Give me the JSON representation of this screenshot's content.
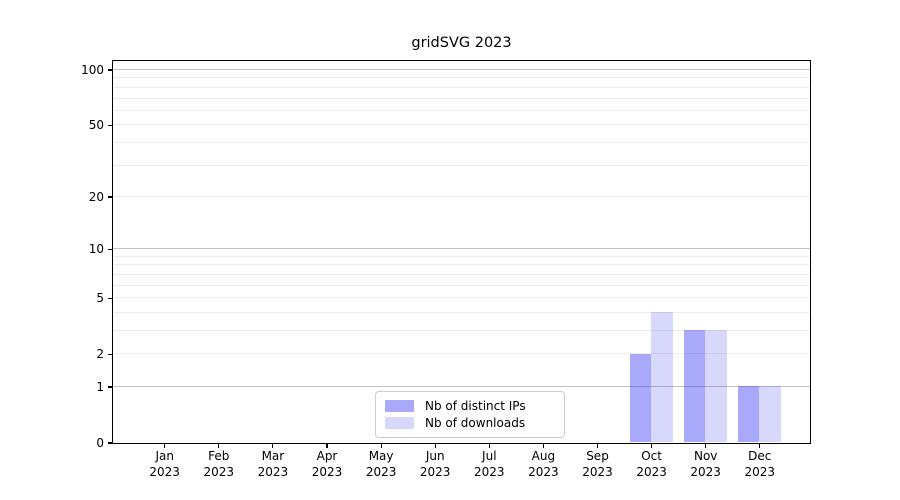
{
  "title": "gridSVG 2023",
  "chart_data": {
    "type": "bar",
    "title": "gridSVG 2023",
    "x": [
      "Jan",
      "Feb",
      "Mar",
      "Apr",
      "May",
      "Jun",
      "Jul",
      "Aug",
      "Sep",
      "Oct",
      "Nov",
      "Dec"
    ],
    "x_year": "2023",
    "series": [
      {
        "name": "Nb of distinct IPs",
        "color": "rgba(40,40,245,0.4)",
        "color_hex": "#a9a9f7",
        "values": [
          0,
          0,
          0,
          0,
          0,
          0,
          0,
          0,
          0,
          2,
          3,
          1
        ]
      },
      {
        "name": "Nb of downloads",
        "color": "rgba(40,40,245,0.18)",
        "color_hex": "#dadaf9",
        "values": [
          0,
          0,
          0,
          0,
          0,
          0,
          0,
          0,
          0,
          4,
          3,
          1
        ]
      }
    ],
    "yscale": "log1p",
    "ylim": [
      0,
      112
    ],
    "y_major_ticks": [
      0,
      1,
      2,
      5,
      10,
      20,
      50,
      100
    ],
    "y_minor_gridlines": [
      3,
      4,
      6,
      7,
      8,
      9,
      30,
      40,
      60,
      70,
      80,
      90
    ],
    "y_emphasized_gridlines": [
      1,
      10,
      100
    ],
    "grid": "horizontal",
    "legend_position": "inside-bottom-center",
    "xlabel": "",
    "ylabel": ""
  },
  "legend": {
    "items": [
      {
        "label": "Nb of distinct IPs"
      },
      {
        "label": "Nb of downloads"
      }
    ]
  },
  "colors": {
    "bar_ips": "rgba(40,40,245,0.4)",
    "bar_downloads": "rgba(40,40,245,0.18)",
    "gridline_decade": "#c3c3c3",
    "gridline_minor": "#ededed",
    "axis": "#000000",
    "text": "#000000",
    "legend_border": "#cccccc",
    "background": "#ffffff"
  }
}
